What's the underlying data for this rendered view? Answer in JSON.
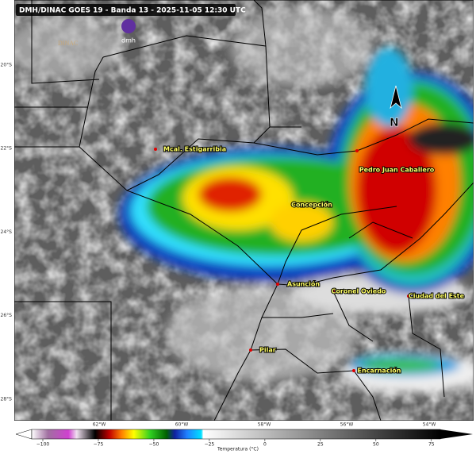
{
  "header": {
    "title": "DMH/DINAC GOES 19 - Banda 13 - 2025-11-05 12:30 UTC"
  },
  "logos": [
    "DINAC",
    "dmh"
  ],
  "north": "N",
  "cities": [
    "Mcal. Estigarribia",
    "Concepción",
    "Pedro Juan Caballero",
    "Asunción",
    "Coronel Oviedo",
    "Ciudad del Este",
    "Pilar",
    "Encarnación"
  ],
  "lat_labels": [
    "20°S",
    "22°S",
    "24°S",
    "26°S",
    "28°S"
  ],
  "lon_labels": [
    "62°W",
    "60°W",
    "58°W",
    "56°W",
    "54°W"
  ],
  "colorbar": {
    "label": "Temperatura (°C)",
    "range": [
      -105,
      79
    ],
    "ticks": [
      {
        "value": -100,
        "label": "−100"
      },
      {
        "value": -75,
        "label": "−75"
      },
      {
        "value": -50,
        "label": "−50"
      },
      {
        "value": -25,
        "label": "−25"
      },
      0,
      25,
      50,
      75
    ]
  }
}
